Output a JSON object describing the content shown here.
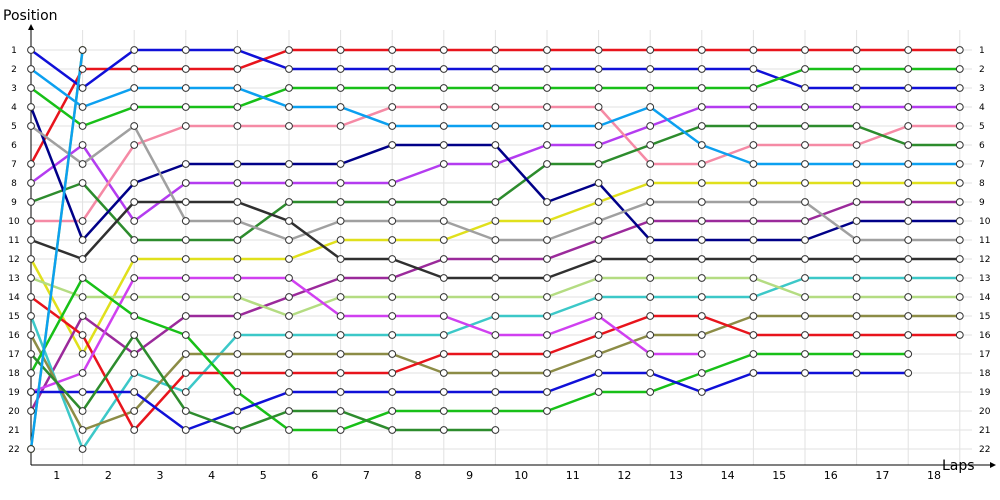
{
  "chart_data": {
    "type": "line",
    "ylabel": "Position",
    "xlabel": "Laps",
    "x_ticks": [
      "1",
      "2",
      "3",
      "4",
      "5",
      "6",
      "7",
      "8",
      "9",
      "10",
      "11",
      "12",
      "13",
      "14",
      "15",
      "16",
      "17",
      "18"
    ],
    "y_ticks": [
      "1",
      "2",
      "3",
      "4",
      "5",
      "6",
      "7",
      "8",
      "9",
      "10",
      "11",
      "12",
      "13",
      "14",
      "15",
      "16",
      "17",
      "18",
      "19",
      "20",
      "21",
      "22"
    ],
    "right_ticks": [
      "1",
      "2",
      "3",
      "4",
      "5",
      "6",
      "7",
      "8",
      "9",
      "10",
      "11",
      "12",
      "13",
      "14",
      "15",
      "16",
      "17",
      "18",
      "19",
      "20",
      "21",
      "22"
    ],
    "xlim": [
      0,
      18.5
    ],
    "ylim": [
      1,
      22
    ],
    "grid": true,
    "series": [
      {
        "color": "#e8141c",
        "positions": [
          7,
          2,
          2,
          2,
          2,
          1,
          1,
          1,
          1,
          1,
          1,
          1,
          1,
          1,
          1,
          1,
          1,
          1,
          1
        ]
      },
      {
        "color": "#1010d8",
        "positions": [
          1,
          3,
          1,
          1,
          1,
          2,
          2,
          2,
          2,
          2,
          2,
          2,
          2,
          2,
          2,
          3,
          3,
          3,
          3
        ]
      },
      {
        "color": "#18c018",
        "positions": [
          3,
          5,
          4,
          4,
          4,
          3,
          3,
          3,
          3,
          3,
          3,
          3,
          3,
          3,
          3,
          2,
          2,
          2,
          2
        ]
      },
      {
        "color": "#b43cf0",
        "positions": [
          8,
          6,
          10,
          8,
          8,
          8,
          8,
          8,
          7,
          7,
          6,
          6,
          5,
          4,
          4,
          4,
          4,
          4,
          4
        ]
      },
      {
        "color": "#f58aa5",
        "positions": [
          10,
          10,
          6,
          5,
          5,
          5,
          5,
          4,
          4,
          4,
          4,
          4,
          7,
          7,
          6,
          6,
          6,
          5,
          5
        ]
      },
      {
        "color": "#2d8c2d",
        "positions": [
          9,
          8,
          11,
          11,
          11,
          9,
          9,
          9,
          9,
          9,
          7,
          7,
          6,
          5,
          5,
          5,
          5,
          6,
          6
        ]
      },
      {
        "color": "#0ca0f0",
        "positions": [
          2,
          4,
          3,
          3,
          3,
          4,
          4,
          5,
          5,
          5,
          5,
          5,
          4,
          6,
          7,
          7,
          7,
          7,
          7
        ]
      },
      {
        "color": "#e0e01c",
        "positions": [
          12,
          17,
          12,
          12,
          12,
          12,
          11,
          11,
          11,
          10,
          10,
          9,
          8,
          8,
          8,
          8,
          8,
          8,
          8
        ]
      },
      {
        "color": "#9b2a9b",
        "positions": [
          20,
          15,
          17,
          15,
          15,
          14,
          13,
          13,
          12,
          12,
          12,
          11,
          10,
          10,
          10,
          10,
          9,
          9,
          9
        ]
      },
      {
        "color": "#000088",
        "positions": [
          4,
          11,
          8,
          7,
          7,
          7,
          7,
          6,
          6,
          6,
          9,
          8,
          11,
          11,
          11,
          11,
          10,
          10,
          10
        ]
      },
      {
        "color": "#a0a0a0",
        "positions": [
          5,
          7,
          5,
          10,
          10,
          11,
          10,
          10,
          10,
          11,
          11,
          10,
          9,
          9,
          9,
          9,
          11,
          11,
          11
        ]
      },
      {
        "color": "#303030",
        "positions": [
          11,
          12,
          9,
          9,
          9,
          10,
          12,
          12,
          13,
          13,
          13,
          12,
          12,
          12,
          12,
          12,
          12,
          12,
          12
        ]
      },
      {
        "color": "#3cc8c8",
        "positions": [
          15,
          22,
          18,
          19,
          16,
          16,
          16,
          16,
          16,
          15,
          15,
          14,
          14,
          14,
          14,
          13,
          13,
          13,
          13
        ]
      },
      {
        "color": "#b4dc82",
        "positions": [
          13,
          14,
          14,
          14,
          14,
          15,
          14,
          14,
          14,
          14,
          14,
          13,
          13,
          13,
          13,
          14,
          14,
          14,
          14
        ]
      },
      {
        "color": "#8c8c46",
        "positions": [
          16,
          21,
          20,
          17,
          17,
          17,
          17,
          17,
          18,
          18,
          18,
          17,
          16,
          16,
          15,
          15,
          15,
          15,
          15
        ]
      },
      {
        "color": "#e8141c",
        "positions": [
          14,
          16,
          21,
          18,
          18,
          18,
          18,
          18,
          17,
          17,
          17,
          16,
          15,
          15,
          16,
          16,
          16,
          16,
          16
        ]
      },
      {
        "color": "#d040f0",
        "positions": [
          19,
          18,
          13,
          13,
          13,
          13,
          15,
          15,
          15,
          16,
          16,
          15,
          17,
          17
        ]
      },
      {
        "color": "#18c018",
        "positions": [
          18,
          13,
          15,
          16,
          19,
          21,
          21,
          20,
          20,
          20,
          20,
          19,
          19,
          18,
          17,
          17,
          17,
          17
        ]
      },
      {
        "color": "#1010d8",
        "positions": [
          19,
          19,
          19,
          21,
          20,
          19,
          19,
          19,
          19,
          19,
          19,
          18,
          18,
          19,
          18,
          18,
          18,
          18
        ]
      },
      {
        "color": "#2d8c2d",
        "positions": [
          17,
          20,
          16,
          20,
          21,
          20,
          20,
          21,
          21,
          21
        ]
      },
      {
        "color": "#a0d832",
        "positions": [
          22,
          1
        ]
      },
      {
        "color": "#0ca0f0",
        "positions": [
          22,
          1
        ]
      }
    ]
  }
}
